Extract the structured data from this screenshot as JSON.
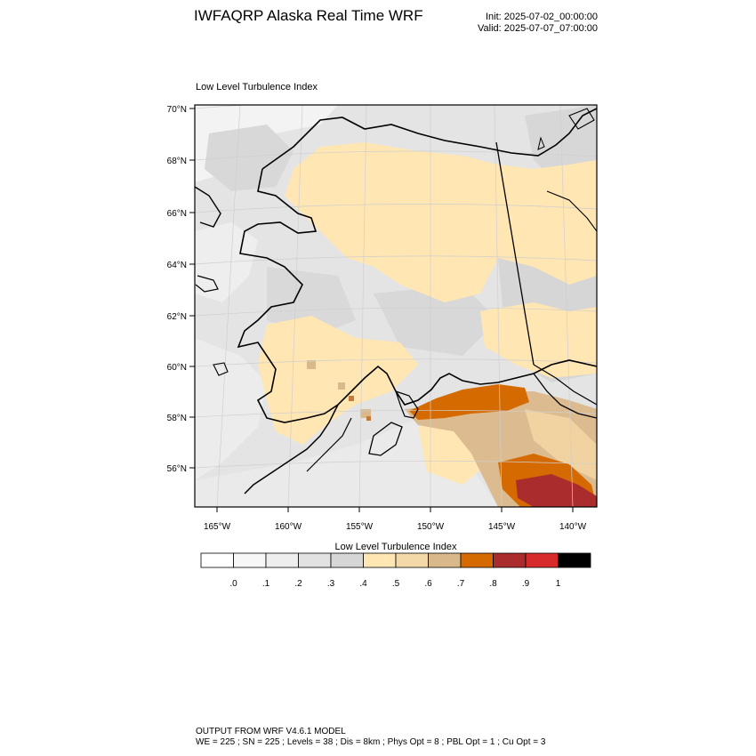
{
  "header": {
    "title": "IWFAQRP Alaska Real Time WRF",
    "init": "Init: 2025-07-02_00:00:00",
    "valid": "Valid: 2025-07-07_07:00:00"
  },
  "map": {
    "subtitle": "Low Level Turbulence Index",
    "lat_labels": [
      "70°N",
      "68°N",
      "66°N",
      "64°N",
      "62°N",
      "60°N",
      "58°N",
      "56°N"
    ],
    "lon_labels": [
      "165°W",
      "160°W",
      "155°W",
      "150°W",
      "145°W",
      "140°W"
    ],
    "colors": {
      "land_background": "#e2e2e2",
      "water_background": "#efefef",
      "border_line": "#000000"
    }
  },
  "colorbar": {
    "title": "Low Level Turbulence Index",
    "colors": [
      "#ffffff",
      "#f7f7f7",
      "#eeeeee",
      "#e2e2e2",
      "#d6d6d6",
      "#ffe6b3",
      "#f3d9a8",
      "#d9b98c",
      "#d46a00",
      "#ab2c2c",
      "#d72a2a",
      "#000000"
    ],
    "tick_labels": [
      ".0",
      ".1",
      ".2",
      ".3",
      ".4",
      ".5",
      ".6",
      ".7",
      ".8",
      ".9",
      "1"
    ]
  },
  "footer": {
    "line1": "OUTPUT FROM WRF V4.6.1 MODEL",
    "line2": "WE = 225 ; SN = 225 ; Levels = 38 ; Dis = 8km ; Phys Opt = 8 ; PBL Opt = 1 ; Cu Opt = 3"
  }
}
